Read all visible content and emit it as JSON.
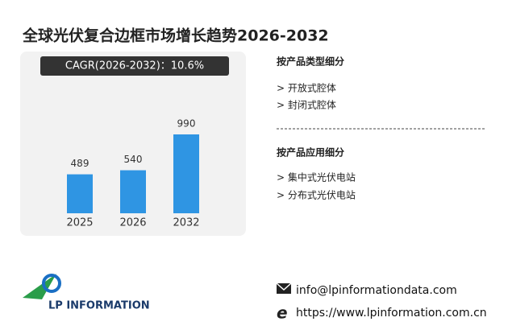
{
  "chart_data": {
    "type": "bar",
    "title": "全球光伏复合边框市场增长趋势2026-2032",
    "subtitle": "CAGR(2026-2032)：10.6%",
    "categories": [
      "2025",
      "2026",
      "2032"
    ],
    "values": [
      489,
      540,
      990
    ],
    "color": "#2f95e3"
  },
  "segments": [
    {
      "heading": "按产品类型细分",
      "items": [
        "> 开放式腔体",
        "> 封闭式腔体"
      ]
    },
    {
      "heading": "按产品应用细分",
      "items": [
        "> 集中式光伏电站",
        "> 分布式光伏电站"
      ]
    }
  ],
  "logo": "LP INFORMATION",
  "contact": {
    "email": "info@lpinformationdata.com",
    "website": "https://www.lpinformation.com.cn"
  }
}
